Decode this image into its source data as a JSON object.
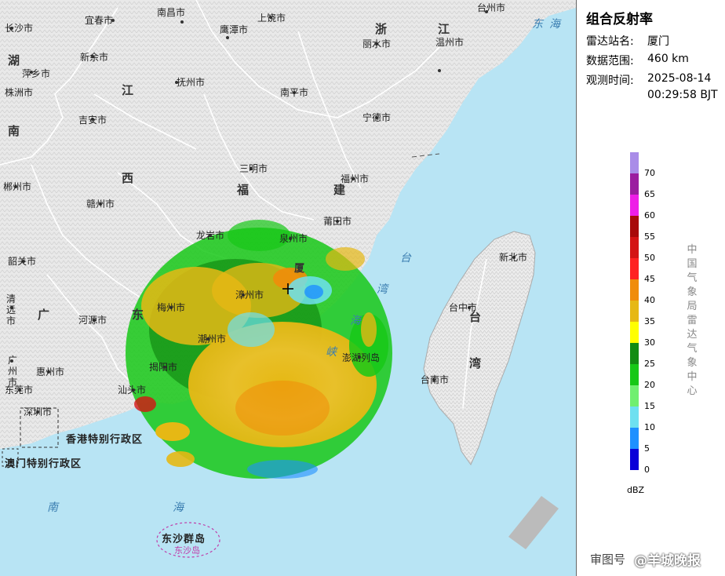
{
  "legend": {
    "title": "组合反射率",
    "station_label": "雷达站名:",
    "station_value": "厦门",
    "range_label": "数据范围:",
    "range_value": "460 km",
    "time_label": "观测时间:",
    "time_value_date": "2025-08-14",
    "time_value_time": "00:29:58 BJT",
    "unit": "dBZ",
    "source": "中国气象局雷达气象中心",
    "scale": [
      {
        "value": "70",
        "color": "#a98ce8"
      },
      {
        "value": "65",
        "color": "#9b1da0"
      },
      {
        "value": "60",
        "color": "#ee1ee7"
      },
      {
        "value": "55",
        "color": "#a80a0a"
      },
      {
        "value": "50",
        "color": "#d41414"
      },
      {
        "value": "45",
        "color": "#ff2222"
      },
      {
        "value": "40",
        "color": "#f08c0a"
      },
      {
        "value": "35",
        "color": "#e6b814"
      },
      {
        "value": "30",
        "color": "#ffff00"
      },
      {
        "value": "25",
        "color": "#128c12"
      },
      {
        "value": "20",
        "color": "#17c817"
      },
      {
        "value": "15",
        "color": "#70ef70"
      },
      {
        "value": "10",
        "color": "#6ee0f0"
      },
      {
        "value": "5",
        "color": "#1e90ff"
      },
      {
        "value": "0",
        "color": "#0a00d8"
      }
    ]
  },
  "map": {
    "cities": {
      "nanchang": "南昌市",
      "changsha": "长沙市",
      "yichun": "宜春市",
      "shangrao": "上饶市",
      "taizhou": "台州市",
      "pingxiang": "萍乡市",
      "xinyu": "新余市",
      "yingtan": "鹰潭市",
      "lishui": "丽水市",
      "wenzhou": "温州市",
      "zhuzhou": "株洲市",
      "fuzhou_jx": "抚州市",
      "nanping": "南平市",
      "jian": "吉安市",
      "ningde": "宁德市",
      "sanming": "三明市",
      "fuzhou": "福州市",
      "chenzhou": "郴州市",
      "ganzhou": "赣州市",
      "putian": "莆田市",
      "longyan": "龙岩市",
      "quanzhou": "泉州市",
      "shaoguan": "韶关市",
      "xinbei": "新北市",
      "zhangzhou": "漳州市",
      "meizhou": "梅州市",
      "qingyuan": "清远市",
      "heyuan": "河源市",
      "chaozhou": "潮州市",
      "taichung": "台中市",
      "guangzhou": "广州市",
      "huizhou": "惠州市",
      "jieyang": "揭阳市",
      "penghu": "澎湖列岛",
      "tainan": "台南市",
      "dongguan": "东莞市",
      "shantou": "汕头市",
      "shenzhen": "深圳市",
      "dongsha_island": "东沙岛"
    },
    "provinces": {
      "hu": "湖",
      "nan": "南",
      "jiang": "江",
      "xi": "西",
      "zhe": "浙",
      "jiang2": "江",
      "fu": "福",
      "jian": "建",
      "guang": "广",
      "dong": "东",
      "tai": "台",
      "wan": "湾",
      "xiamen_char": "厦"
    },
    "regions": {
      "hongkong": "香港特别行政区",
      "macau": "澳门特别行政区",
      "dongsha": "东沙群岛"
    },
    "seas": {
      "dong": "东",
      "hai": "海",
      "nan": "南",
      "hai2": "海",
      "tai": "台",
      "wan": "湾",
      "hai3": "海",
      "xia": "峡"
    }
  },
  "watermark": {
    "prefix": "审图号",
    "brand": "@羊城晚报"
  }
}
